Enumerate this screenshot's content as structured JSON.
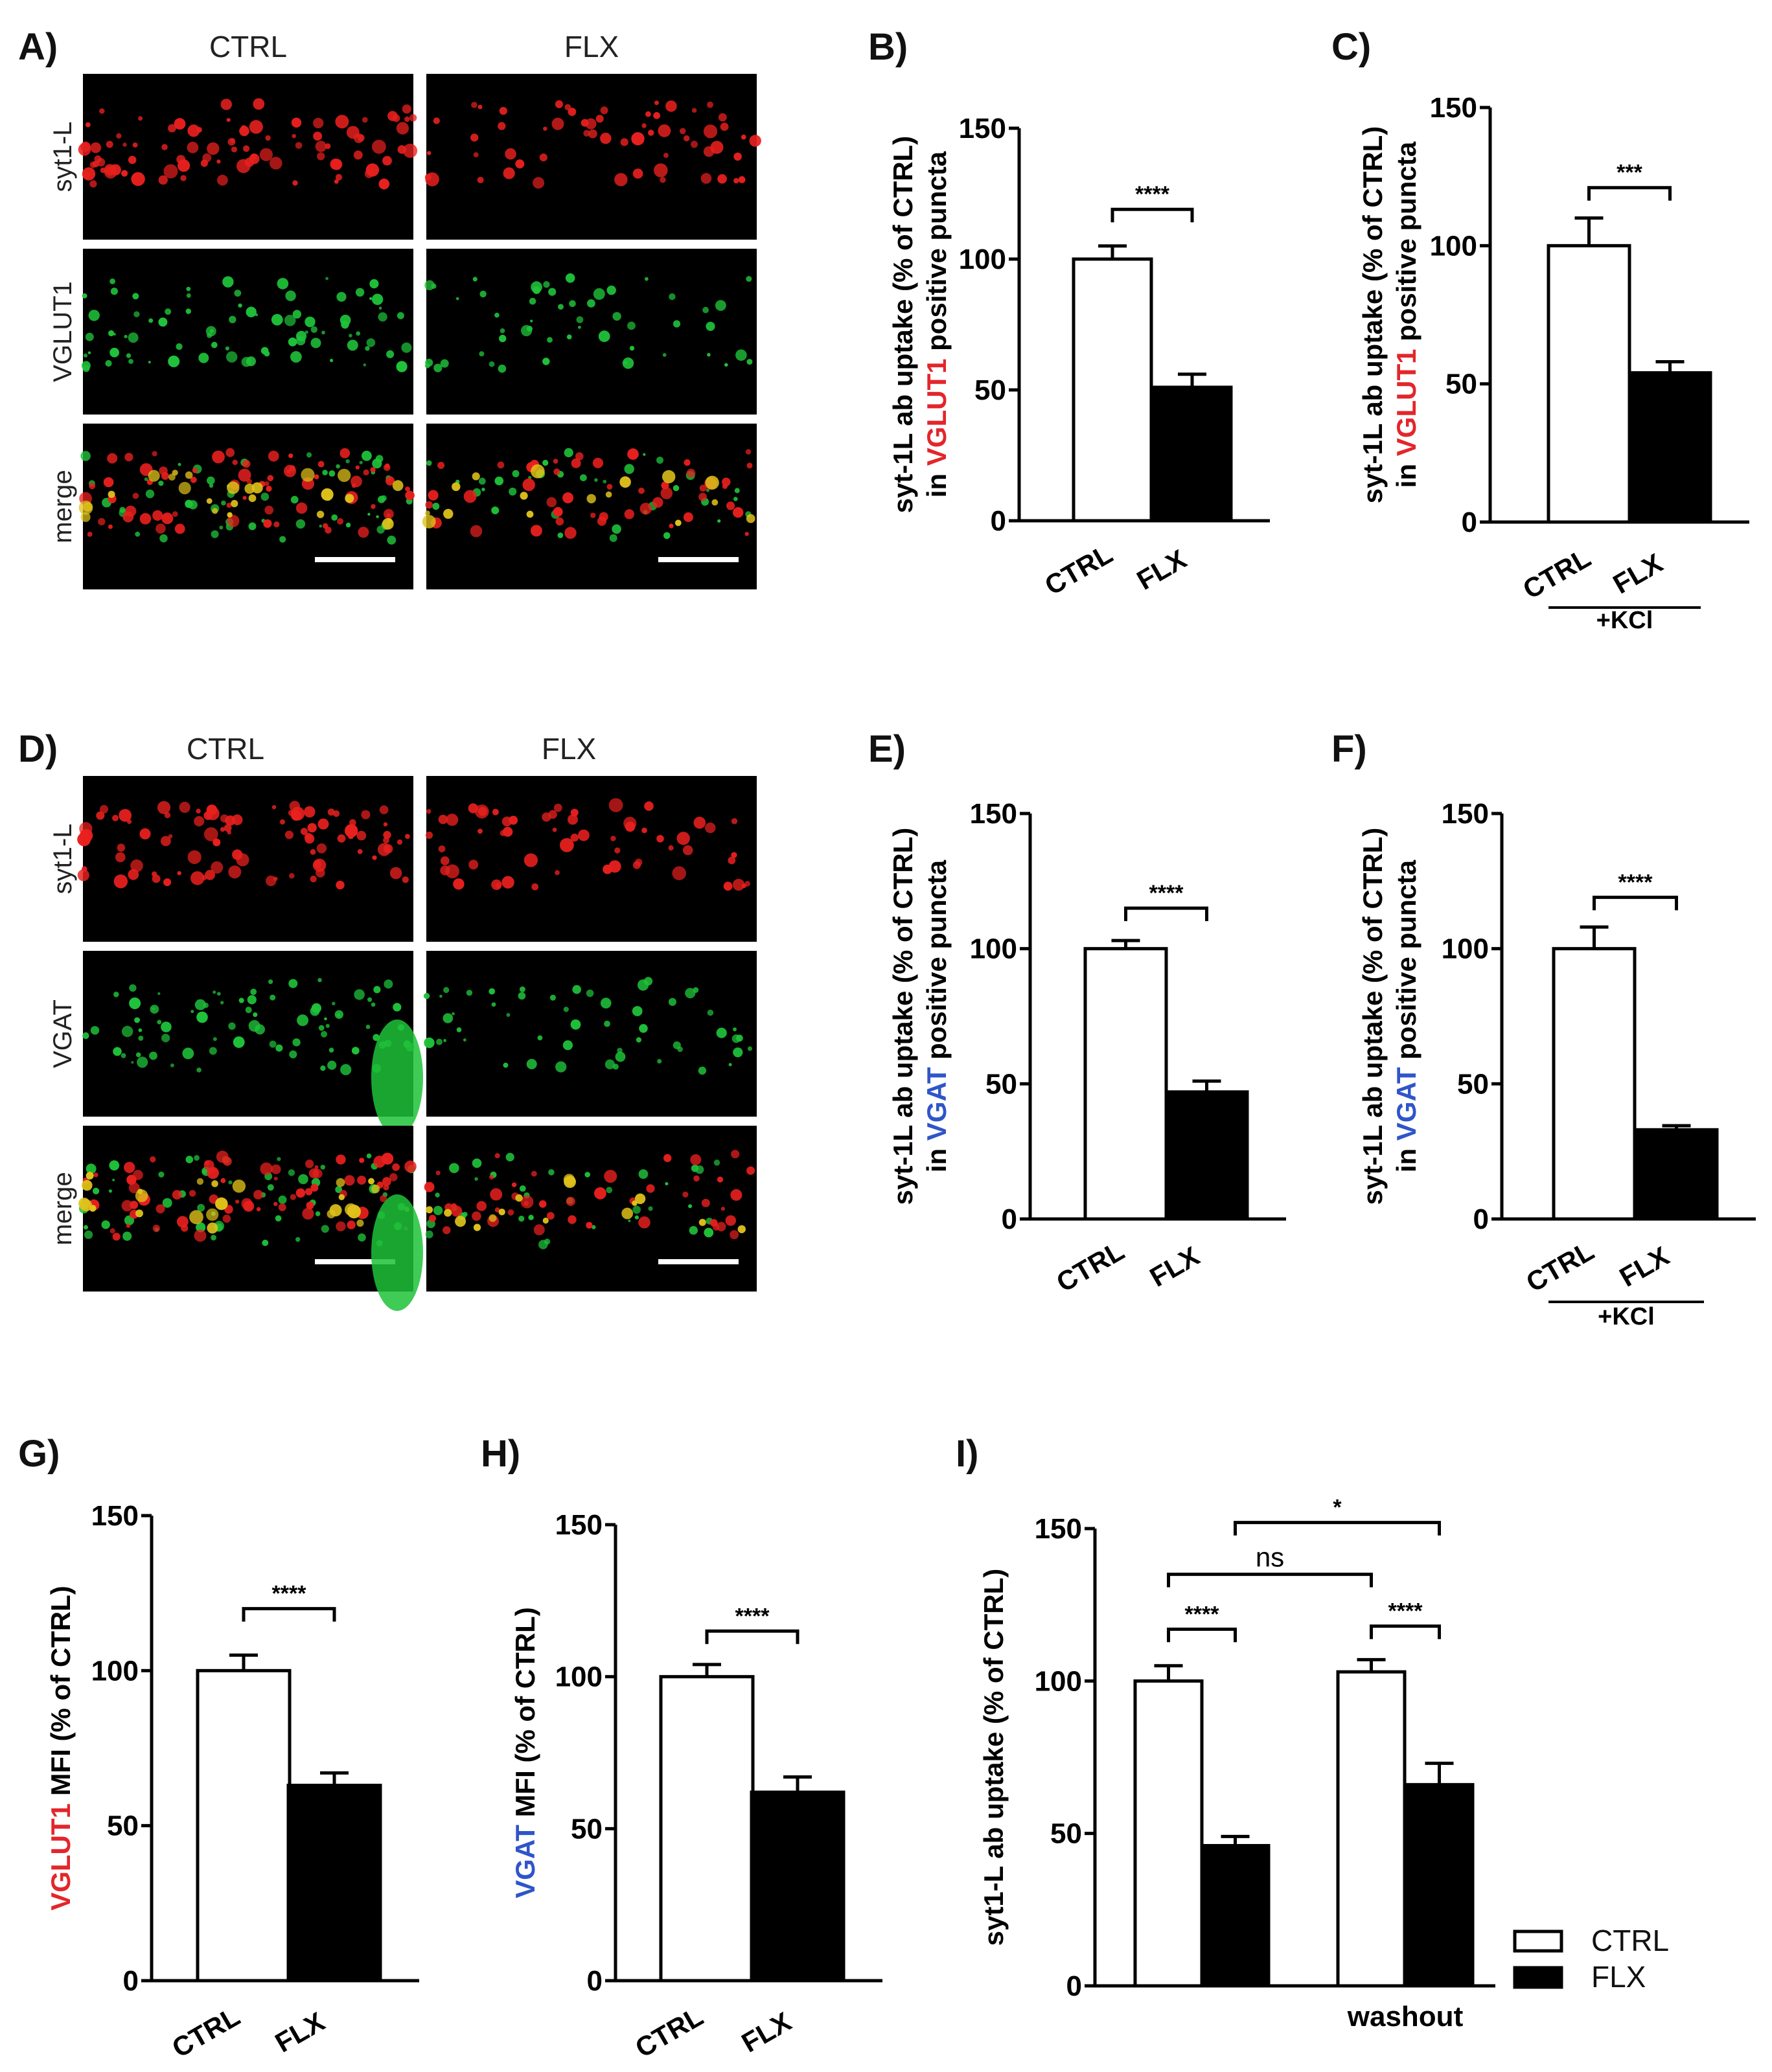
{
  "colors": {
    "ctrl_fill": "#ffffff",
    "flx_fill": "#000000",
    "vglut1_red": "#e3262b",
    "vgat_blue": "#2f55c8",
    "puncta_red": "#e8201e",
    "puncta_green": "#1fc23a",
    "puncta_yellow": "#e0c21a",
    "micrograph_bg": "#000000"
  },
  "image_panels": [
    {
      "letter": "A)",
      "columns": [
        "CTRL",
        "FLX"
      ],
      "rows": [
        "syt1-L",
        "VGLUT1",
        "merge"
      ]
    },
    {
      "letter": "D)",
      "columns": [
        "CTRL",
        "FLX"
      ],
      "rows": [
        "syt1-L",
        "VGAT",
        "merge"
      ]
    }
  ],
  "chart_data": [
    {
      "id": "B",
      "letter": "B)",
      "type": "bar",
      "categories": [
        "CTRL",
        "FLX"
      ],
      "values": [
        100,
        51
      ],
      "errors": [
        5,
        5
      ],
      "ylim": [
        0,
        150
      ],
      "yticks": [
        0,
        50,
        100,
        150
      ],
      "ylabel_line1": "syt-1L ab uptake (% of CTRL)",
      "ylabel_line2_pre": "in ",
      "ylabel_line2_hl": "VGLUT1",
      "ylabel_line2_post": " positive puncta",
      "highlight": "red",
      "significance": [
        {
          "from": 0,
          "to": 1,
          "y": 119,
          "label": "****"
        }
      ]
    },
    {
      "id": "C",
      "letter": "C)",
      "type": "bar",
      "categories": [
        "CTRL",
        "FLX"
      ],
      "values": [
        100,
        54
      ],
      "errors": [
        10,
        4
      ],
      "ylim": [
        0,
        150
      ],
      "yticks": [
        0,
        50,
        100,
        150
      ],
      "ylabel_line1": "syt-1L ab uptake (% of CTRL)",
      "ylabel_line2_pre": "in ",
      "ylabel_line2_hl": "VGLUT1",
      "ylabel_line2_post": " positive puncta",
      "highlight": "red",
      "significance": [
        {
          "from": 0,
          "to": 1,
          "y": 121,
          "label": "***"
        }
      ],
      "group_label": "+KCl"
    },
    {
      "id": "E",
      "letter": "E)",
      "type": "bar",
      "categories": [
        "CTRL",
        "FLX"
      ],
      "values": [
        100,
        47
      ],
      "errors": [
        3,
        4
      ],
      "ylim": [
        0,
        150
      ],
      "yticks": [
        0,
        50,
        100,
        150
      ],
      "ylabel_line1": "syt-1L ab uptake (% of CTRL)",
      "ylabel_line2_pre": "in ",
      "ylabel_line2_hl": "VGAT",
      "ylabel_line2_post": " positive puncta",
      "highlight": "blue",
      "significance": [
        {
          "from": 0,
          "to": 1,
          "y": 115,
          "label": "****"
        }
      ]
    },
    {
      "id": "F",
      "letter": "F)",
      "type": "bar",
      "categories": [
        "CTRL",
        "FLX"
      ],
      "values": [
        100,
        33
      ],
      "errors": [
        8,
        1.5
      ],
      "ylim": [
        0,
        150
      ],
      "yticks": [
        0,
        50,
        100,
        150
      ],
      "ylabel_line1": "syt-1L ab uptake (% of CTRL)",
      "ylabel_line2_pre": "in ",
      "ylabel_line2_hl": "VGAT",
      "ylabel_line2_post": " positive puncta",
      "highlight": "blue",
      "significance": [
        {
          "from": 0,
          "to": 1,
          "y": 119,
          "label": "****"
        }
      ],
      "group_label": "+KCl"
    },
    {
      "id": "G",
      "letter": "G)",
      "type": "bar",
      "categories": [
        "CTRL",
        "FLX"
      ],
      "values": [
        100,
        63
      ],
      "errors": [
        5,
        4
      ],
      "ylim": [
        0,
        150
      ],
      "yticks": [
        0,
        50,
        100,
        150
      ],
      "ylabel_line1": "",
      "ylabel_line2_pre": "",
      "ylabel_line2_hl": "VGLUT1",
      "ylabel_line2_post": " MFI (% of CTRL)",
      "highlight": "red",
      "significance": [
        {
          "from": 0,
          "to": 1,
          "y": 120,
          "label": "****"
        }
      ]
    },
    {
      "id": "H",
      "letter": "H)",
      "type": "bar",
      "categories": [
        "CTRL",
        "FLX"
      ],
      "values": [
        100,
        62
      ],
      "errors": [
        4,
        5
      ],
      "ylim": [
        0,
        150
      ],
      "yticks": [
        0,
        50,
        100,
        150
      ],
      "ylabel_line1": "",
      "ylabel_line2_pre": "",
      "ylabel_line2_hl": "VGAT",
      "ylabel_line2_post": " MFI (% of CTRL)",
      "highlight": "blue",
      "significance": [
        {
          "from": 0,
          "to": 1,
          "y": 115,
          "label": "****"
        }
      ]
    },
    {
      "id": "I",
      "letter": "I)",
      "type": "bar",
      "groups": [
        "",
        "washout"
      ],
      "series": [
        {
          "name": "CTRL",
          "values": [
            100,
            103
          ],
          "errors": [
            5,
            4
          ]
        },
        {
          "name": "FLX",
          "values": [
            46,
            66
          ],
          "errors": [
            3,
            7
          ]
        }
      ],
      "ylim": [
        0,
        150
      ],
      "yticks": [
        0,
        50,
        100,
        150
      ],
      "ylabel_line1": "",
      "ylabel_line2_pre": "",
      "ylabel_line2_hl": "",
      "ylabel_line2_post": "syt1-L ab uptake (% of CTRL)",
      "highlight": "none",
      "significance": [
        {
          "from": [
            0,
            0
          ],
          "to": [
            0,
            1
          ],
          "y": 117,
          "label": "****"
        },
        {
          "from": [
            1,
            0
          ],
          "to": [
            1,
            1
          ],
          "y": 118,
          "label": "****"
        },
        {
          "from": [
            0,
            0
          ],
          "to": [
            1,
            0
          ],
          "y": 135,
          "label": "ns"
        },
        {
          "from": [
            0,
            1
          ],
          "to": [
            1,
            1
          ],
          "y": 152,
          "label": "*"
        }
      ],
      "legend": [
        "CTRL",
        "FLX"
      ],
      "legend_position": "bottom-right"
    }
  ]
}
